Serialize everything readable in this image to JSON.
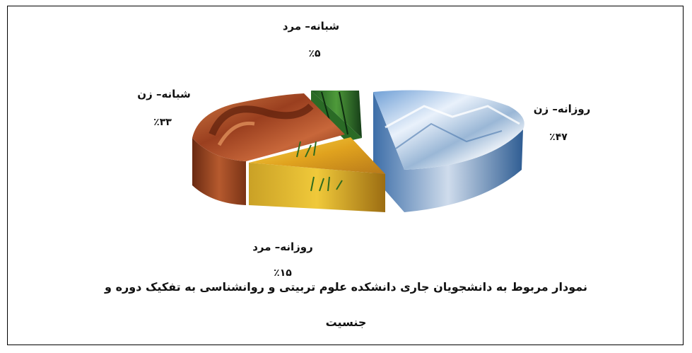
{
  "chart_data": {
    "type": "pie",
    "title_line1": "نمودار مربوط به دانشجویان جاری دانشکده علوم تربیتی و روانشناسی به تفکیک دوره و",
    "title_line2": "جنسیت",
    "slices": [
      {
        "label": "روزانه– زن",
        "value": 47,
        "value_label": "٪۴۷",
        "fill": "snowy-mountain"
      },
      {
        "label": "روزانه– مرد",
        "value": 15,
        "value_label": "٪۱۵",
        "fill": "golden-grass-water"
      },
      {
        "label": "شبانه– زن",
        "value": 33,
        "value_label": "٪۳۳",
        "fill": "red-rock-arch"
      },
      {
        "label": "شبانه– مرد",
        "value": 5,
        "value_label": "٪۵",
        "fill": "green-forest"
      }
    ],
    "style": "3d-exploded-pie"
  }
}
